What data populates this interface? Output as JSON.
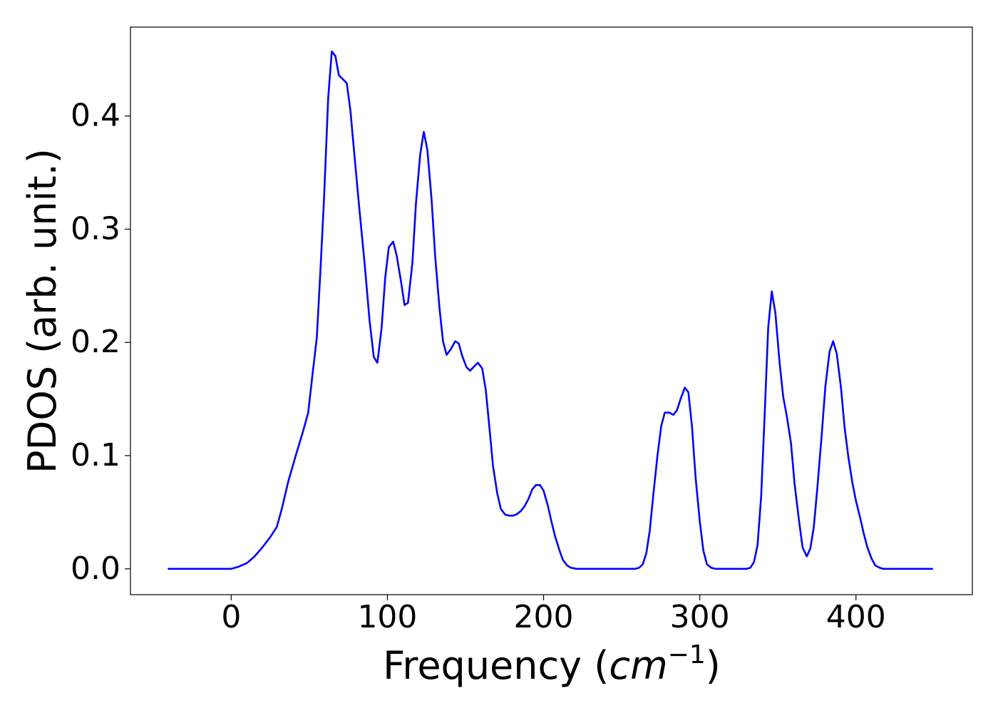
{
  "chart_data": {
    "type": "line",
    "ylabel": "PDOS (arb. unit.)",
    "xlabel": [
      "Frequency (",
      "cm",
      "−1",
      ")"
    ],
    "color": "#0000ff",
    "xlim": [
      -64.5,
      474.5
    ],
    "xticks": [
      0,
      100,
      200,
      300,
      400
    ],
    "ylim": [
      -0.0228,
      0.4785
    ],
    "yticks": [
      {
        "value": 0,
        "label": "0.0"
      },
      0.1,
      0.2,
      0.3,
      0.4
    ],
    "grid": false,
    "x": [
      -40.6,
      0,
      5,
      10,
      15,
      20,
      25,
      29.2,
      32.4,
      36.5,
      41.1,
      46.1,
      49.3,
      52,
      54.8,
      57,
      59.4,
      62.1,
      64.4,
      66.7,
      68.9,
      74,
      76.3,
      79,
      81.7,
      85.4,
      88.6,
      91.3,
      93.6,
      96.3,
      98.6,
      100.9,
      103.7,
      105.9,
      108.7,
      111,
      113.2,
      116,
      118.3,
      121,
      123.3,
      125.6,
      128.3,
      130.6,
      133.3,
      135.6,
      137.9,
      140.6,
      143.4,
      145.7,
      147.9,
      150.7,
      153,
      155.7,
      158,
      160.7,
      163,
      165.3,
      167.6,
      170.3,
      172.6,
      175.3,
      177.6,
      180.4,
      182.6,
      185.4,
      187.7,
      190.4,
      192.7,
      195,
      197.7,
      200,
      202.7,
      205,
      207.3,
      210,
      212.3,
      215,
      217.4,
      221,
      258.9,
      261.2,
      263.5,
      265.8,
      268,
      270.3,
      273,
      275.3,
      277.6,
      280.4,
      283.1,
      285.4,
      287.7,
      290.4,
      292.7,
      295,
      297.3,
      300,
      302.3,
      304.6,
      307.3,
      310,
      330.1,
      332.4,
      334.7,
      337,
      339.3,
      341.6,
      343.8,
      346.1,
      348.4,
      351.1,
      353.4,
      355.7,
      358.4,
      360.7,
      363.5,
      365.8,
      368.5,
      370.8,
      373,
      375.3,
      378.1,
      380.4,
      383.1,
      385.4,
      387.7,
      390.4,
      392.7,
      395,
      397.7,
      400,
      402.7,
      405,
      407.3,
      410,
      412.3,
      415.1,
      417.4,
      449.3
    ],
    "values": [
      0,
      0,
      0.002,
      0.005,
      0.011,
      0.019,
      0.028,
      0.037,
      0.053,
      0.077,
      0.099,
      0.122,
      0.138,
      0.171,
      0.204,
      0.26,
      0.326,
      0.416,
      0.457,
      0.453,
      0.436,
      0.429,
      0.405,
      0.364,
      0.323,
      0.27,
      0.219,
      0.187,
      0.182,
      0.213,
      0.257,
      0.284,
      0.289,
      0.277,
      0.254,
      0.233,
      0.235,
      0.27,
      0.323,
      0.366,
      0.386,
      0.37,
      0.326,
      0.276,
      0.231,
      0.201,
      0.189,
      0.194,
      0.201,
      0.199,
      0.188,
      0.178,
      0.175,
      0.179,
      0.182,
      0.177,
      0.158,
      0.125,
      0.091,
      0.067,
      0.053,
      0.048,
      0.047,
      0.047,
      0.048,
      0.051,
      0.055,
      0.062,
      0.07,
      0.074,
      0.074,
      0.069,
      0.056,
      0.042,
      0.029,
      0.017,
      0.008,
      0.003,
      0.001,
      0,
      0,
      0.001,
      0.004,
      0.014,
      0.034,
      0.066,
      0.101,
      0.126,
      0.138,
      0.138,
      0.136,
      0.14,
      0.15,
      0.16,
      0.156,
      0.126,
      0.081,
      0.042,
      0.016,
      0.004,
      0.001,
      0,
      0,
      0.001,
      0.006,
      0.021,
      0.064,
      0.138,
      0.213,
      0.245,
      0.226,
      0.182,
      0.152,
      0.135,
      0.111,
      0.075,
      0.043,
      0.019,
      0.011,
      0.018,
      0.037,
      0.072,
      0.119,
      0.161,
      0.192,
      0.201,
      0.19,
      0.16,
      0.125,
      0.1,
      0.076,
      0.06,
      0.045,
      0.031,
      0.019,
      0.009,
      0.003,
      0.001,
      0,
      0
    ]
  }
}
